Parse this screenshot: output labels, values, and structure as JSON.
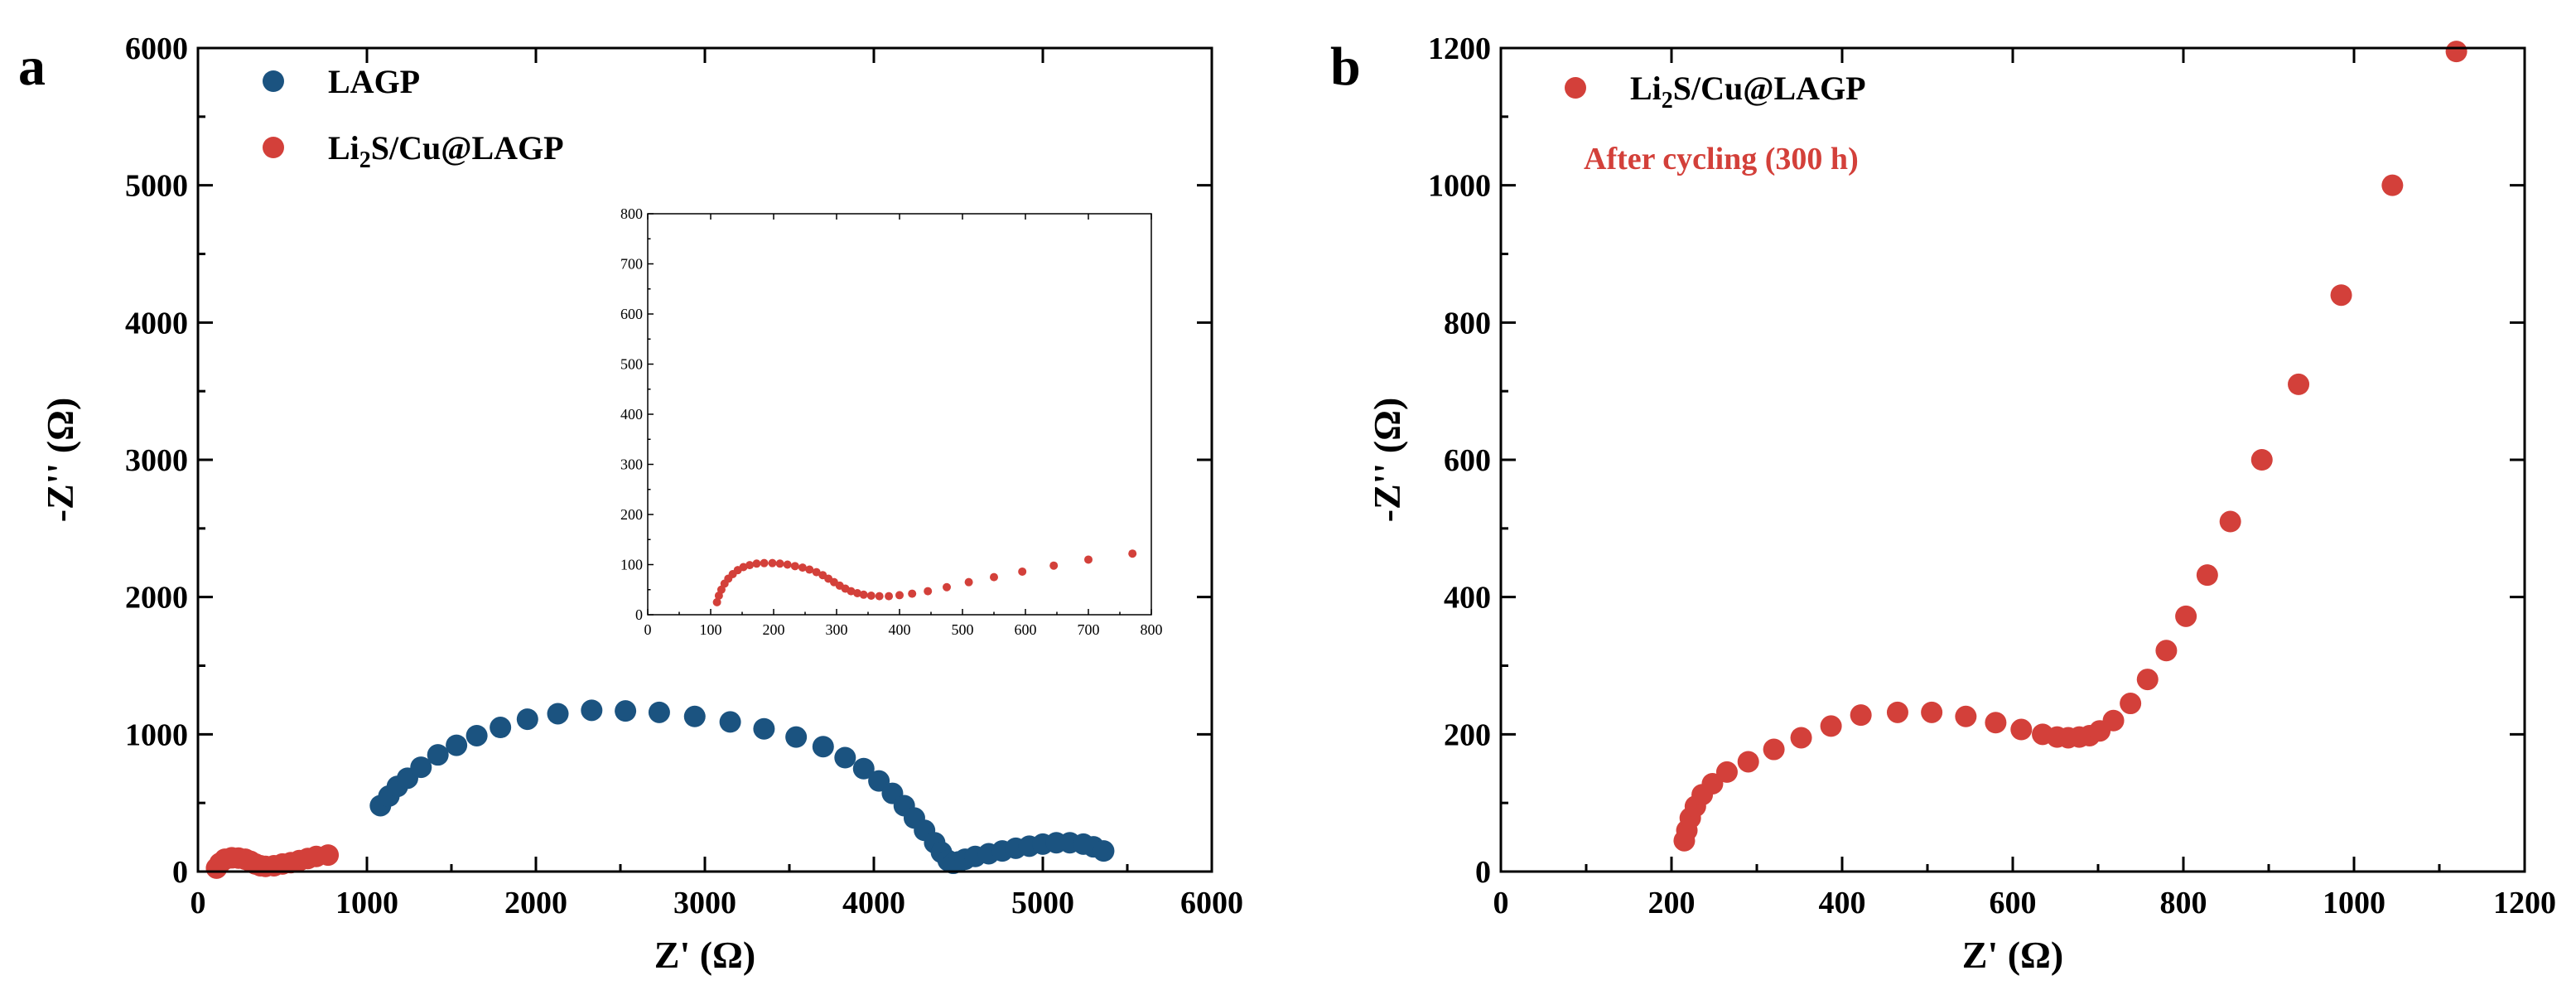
{
  "colors": {
    "lagp": "#1b5380",
    "li2s": "#d3403a"
  },
  "chart_data": [
    {
      "panel": "a",
      "type": "scatter",
      "xlabel": "Z' (Ω)",
      "ylabel": "-Z'' (Ω)",
      "xlim": [
        0,
        6000
      ],
      "ylim": [
        0,
        6000
      ],
      "xticks": [
        "0",
        "1000",
        "2000",
        "3000",
        "4000",
        "5000",
        "6000"
      ],
      "yticks": [
        "0",
        "1000",
        "2000",
        "3000",
        "4000",
        "5000",
        "6000"
      ],
      "legend": {
        "placement": "top-left",
        "entries": [
          {
            "label": "LAGP",
            "series": "LAGP"
          },
          {
            "label_main": "Li",
            "label_sub": "2",
            "label_rest": "S/Cu@LAGP",
            "series": "Li2S/Cu@LAGP"
          }
        ]
      },
      "series": [
        {
          "name": "LAGP",
          "x": [
            1080,
            1130,
            1180,
            1240,
            1320,
            1420,
            1530,
            1650,
            1790,
            1950,
            2130,
            2330,
            2530,
            2730,
            2940,
            3150,
            3350,
            3540,
            3700,
            3830,
            3940,
            4030,
            4110,
            4180,
            4240,
            4300,
            4360,
            4400,
            4440,
            4470,
            4500,
            4540,
            4600,
            4680,
            4760,
            4840,
            4920,
            5000,
            5080,
            5160,
            5240,
            5300,
            5360
          ],
          "y": [
            480,
            550,
            620,
            680,
            760,
            850,
            920,
            990,
            1050,
            1110,
            1150,
            1175,
            1170,
            1160,
            1130,
            1090,
            1040,
            980,
            910,
            830,
            750,
            660,
            570,
            480,
            390,
            300,
            210,
            140,
            80,
            60,
            70,
            90,
            110,
            130,
            150,
            170,
            185,
            200,
            210,
            210,
            200,
            180,
            150
          ]
        },
        {
          "name": "Li2S/Cu@LAGP",
          "x": [
            110,
            130,
            160,
            200,
            240,
            280,
            310,
            340,
            370,
            400,
            450,
            500,
            550,
            600,
            650,
            700,
            770
          ],
          "y": [
            25,
            60,
            90,
            100,
            98,
            90,
            75,
            55,
            42,
            38,
            42,
            55,
            65,
            80,
            95,
            110,
            120
          ]
        }
      ],
      "inset": {
        "type": "scatter",
        "xlim": [
          0,
          800
        ],
        "ylim": [
          0,
          800
        ],
        "xticks": [
          "0",
          "100",
          "200",
          "300",
          "400",
          "500",
          "600",
          "700",
          "800"
        ],
        "yticks": [
          "0",
          "100",
          "200",
          "300",
          "400",
          "500",
          "600",
          "700",
          "800"
        ],
        "series": {
          "name": "Li2S/Cu@LAGP",
          "x": [
            110,
            113,
            117,
            122,
            128,
            135,
            143,
            152,
            162,
            173,
            185,
            198,
            210,
            222,
            234,
            246,
            257,
            268,
            278,
            287,
            296,
            305,
            314,
            323,
            333,
            343,
            355,
            368,
            383,
            400,
            420,
            445,
            475,
            510,
            550,
            595,
            645,
            700,
            770
          ],
          "y": [
            25,
            38,
            50,
            62,
            72,
            81,
            89,
            95,
            99,
            102,
            103,
            103,
            102,
            100,
            97,
            94,
            90,
            85,
            79,
            72,
            65,
            58,
            52,
            47,
            43,
            40,
            38,
            37,
            37,
            39,
            42,
            47,
            55,
            65,
            75,
            86,
            98,
            110,
            122
          ]
        }
      }
    },
    {
      "panel": "b",
      "type": "scatter",
      "xlabel": "Z' (Ω)",
      "ylabel": "-Z'' (Ω)",
      "xlim": [
        0,
        1200
      ],
      "ylim": [
        0,
        1200
      ],
      "xticks": [
        "0",
        "200",
        "400",
        "600",
        "800",
        "1000",
        "1200"
      ],
      "yticks": [
        "0",
        "200",
        "400",
        "600",
        "800",
        "1000",
        "1200"
      ],
      "legend": {
        "placement": "top-left",
        "entries": [
          {
            "label_main": "Li",
            "label_sub": "2",
            "label_rest": "S/Cu@LAGP",
            "series": "Li2S/Cu@LAGP"
          }
        ]
      },
      "annotation": "After cycling (300 h)",
      "series": [
        {
          "name": "Li2S/Cu@LAGP",
          "x": [
            215,
            218,
            222,
            228,
            236,
            248,
            265,
            290,
            320,
            352,
            387,
            422,
            465,
            505,
            545,
            580,
            610,
            635,
            652,
            665,
            678,
            690,
            702,
            718,
            738,
            758,
            780,
            803,
            828,
            855,
            892,
            935,
            985,
            1045,
            1120
          ],
          "y": [
            45,
            60,
            78,
            95,
            112,
            128,
            145,
            160,
            178,
            195,
            212,
            228,
            232,
            232,
            226,
            217,
            207,
            200,
            196,
            195,
            196,
            198,
            205,
            220,
            245,
            280,
            322,
            372,
            432,
            510,
            600,
            710,
            840,
            1000,
            1195
          ]
        }
      ]
    }
  ],
  "panel_labels": {
    "a": "a",
    "b": "b"
  },
  "legend_a": {
    "lagp": "LAGP",
    "li2s_main": "Li",
    "li2s_sub": "2",
    "li2s_rest": "S/Cu@LAGP"
  },
  "legend_b": {
    "li2s_main": "Li",
    "li2s_sub": "2",
    "li2s_rest": "S/Cu@LAGP"
  },
  "annotation_b": "After cycling (300 h)",
  "axes": {
    "a": {
      "xlabel": "Z' (Ω)",
      "ylabel": "-Z'' (Ω)"
    },
    "b": {
      "xlabel": "Z' (Ω)",
      "ylabel": "-Z'' (Ω)"
    }
  }
}
